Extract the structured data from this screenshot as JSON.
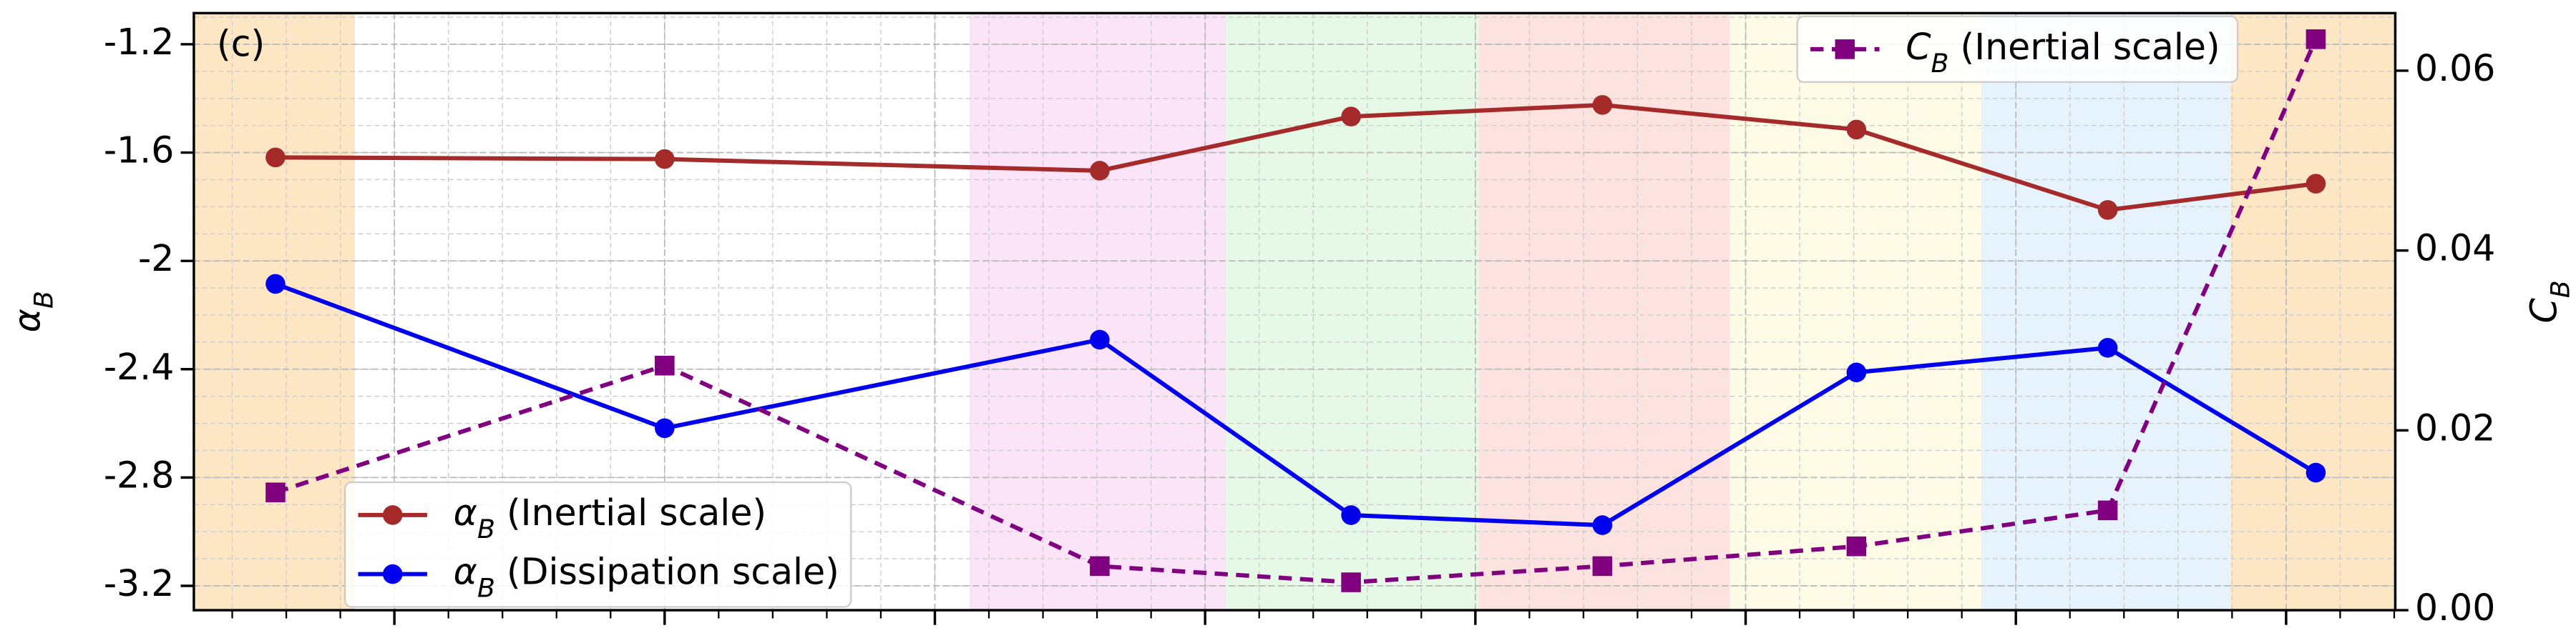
{
  "chart_data": {
    "type": "line",
    "panel_label": "(c)",
    "y_label": "α_B",
    "y2_label": "C_B",
    "x": [
      -0.44,
      1.0,
      2.61,
      3.54,
      4.47,
      5.41,
      6.34,
      7.11
    ],
    "xlim": [
      -0.742,
      7.404
    ],
    "xticks": [
      0,
      1,
      2,
      3,
      4,
      5,
      6,
      7
    ],
    "ylim": [
      -3.29,
      -1.085
    ],
    "yticks": [
      -1.2,
      -1.6,
      -2.0,
      -2.4,
      -2.8,
      -3.2
    ],
    "y2lim": [
      0,
      0.0664
    ],
    "y2ticks": [
      {
        "value": 0,
        "label": "0.00"
      },
      {
        "value": 0.02,
        "label": "0.02"
      },
      {
        "value": 0.04,
        "label": "0.04"
      },
      {
        "value": 0.06,
        "label": "0.06"
      }
    ],
    "y2color": "#800080",
    "grid": true,
    "regions": [
      {
        "x": [
          -0.742,
          -0.146
        ],
        "color": "#fde6c4"
      },
      {
        "x": [
          2.128,
          3.076
        ],
        "color": "#fbe3f8"
      },
      {
        "x": [
          3.076,
          4.012
        ],
        "color": "#e6f8e6"
      },
      {
        "x": [
          4.012,
          4.942
        ],
        "color": "#fde3df"
      },
      {
        "x": [
          4.942,
          5.872
        ],
        "color": "#fdfbe6"
      },
      {
        "x": [
          5.872,
          6.796
        ],
        "color": "#e6f2fc"
      },
      {
        "x": [
          6.796,
          7.404
        ],
        "color": "#fde6c4"
      }
    ],
    "series": [
      {
        "name": "α_B (Inertial scale)",
        "color": "#a52a2a",
        "marker": "circle",
        "dash": false,
        "legend": "lower left",
        "values": [
          -1.618,
          -1.624,
          -1.667,
          -1.467,
          -1.424,
          -1.515,
          -1.812,
          -1.715
        ]
      },
      {
        "name": "α_B (Dissipation scale)",
        "color": "#0000ee",
        "marker": "circle",
        "dash": false,
        "legend": "lower left",
        "values": [
          -2.085,
          -2.618,
          -2.291,
          -2.939,
          -2.976,
          -2.412,
          -2.321,
          -2.782
        ]
      },
      {
        "name": "C_B (Inertial scale)",
        "color": "#800080",
        "marker": "square",
        "dash": true,
        "axis": "y2",
        "legend": "upper right",
        "values": [
          0.0131,
          0.0272,
          0.0049,
          0.0031,
          0.0049,
          0.0071,
          0.0111,
          0.0635
        ]
      }
    ]
  }
}
